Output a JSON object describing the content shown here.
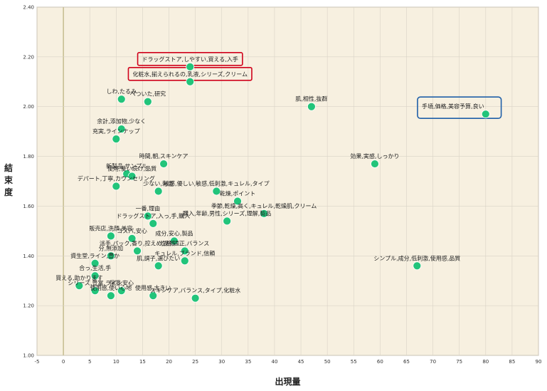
{
  "colors": {
    "plot_bg": "#f7f0e0",
    "grid": "#d9d3c6",
    "zero_line": "#b8b07a",
    "point": "#22c47a",
    "point_stroke": "#ffffff",
    "highlight_red": "#d0021b",
    "highlight_blue": "#1f5fa8"
  },
  "chart_data": {
    "type": "scatter",
    "xlabel": "出現量",
    "ylabel": "結束度",
    "xlim": [
      -5,
      90
    ],
    "ylim": [
      1.0,
      2.4
    ],
    "x_ticks": [
      "-5",
      "0",
      "5",
      "10",
      "15",
      "20",
      "25",
      "30",
      "35",
      "40",
      "45",
      "50",
      "55",
      "60",
      "65",
      "70",
      "75",
      "80",
      "85",
      "90"
    ],
    "y_ticks": [
      "1.00",
      "1.20",
      "1.40",
      "1.60",
      "1.80",
      "2.00",
      "2.20",
      "2.40"
    ],
    "grid": true,
    "points": [
      {
        "x": 24,
        "y": 2.16,
        "label": "ドラッグストア,しやすい,買える,入手",
        "highlight": "red"
      },
      {
        "x": 24,
        "y": 2.1,
        "label": "化粧水,揃えられるの,乳液,シリーズ,クリーム",
        "highlight": "red"
      },
      {
        "x": 80,
        "y": 1.97,
        "label": "手頃,価格,美容予算,良い",
        "highlight": "blue"
      },
      {
        "x": 11,
        "y": 2.03,
        "label": "しわ,たるみ"
      },
      {
        "x": 16,
        "y": 2.02,
        "label": "べついた,研究"
      },
      {
        "x": 47,
        "y": 2.0,
        "label": "肌,相性,抜群"
      },
      {
        "x": 11,
        "y": 1.91,
        "label": "余計,添加物,少なく"
      },
      {
        "x": 10,
        "y": 1.87,
        "label": "充実,ラインナップ"
      },
      {
        "x": 59,
        "y": 1.77,
        "label": "効果,実感,しっかり"
      },
      {
        "x": 19,
        "y": 1.77,
        "label": "時間,朝,スキンケア"
      },
      {
        "x": 12,
        "y": 1.73,
        "label": "新製品,サンプル"
      },
      {
        "x": 13,
        "y": 1.72,
        "label": "使用,使い続け,品質"
      },
      {
        "x": 10,
        "y": 1.68,
        "label": "デパート,丁寧,カウンセリング"
      },
      {
        "x": 18,
        "y": 1.66,
        "label": "少ない,刺激"
      },
      {
        "x": 29,
        "y": 1.66,
        "label": "敏感,優しい,敏感,低刺激,キュレル,タイプ"
      },
      {
        "x": 33,
        "y": 1.62,
        "label": "乾燥,ポイント"
      },
      {
        "x": 38,
        "y": 1.57,
        "label": "季節,乾燥,高く,キュレル,乾燥肌,クリーム"
      },
      {
        "x": 16,
        "y": 1.56,
        "label": "一番,理由"
      },
      {
        "x": 17,
        "y": 1.53,
        "label": "ドラッグストア,入っ,手,購入"
      },
      {
        "x": 31,
        "y": 1.54,
        "label": "購入,年齢,男性,シリーズ,理解,製品"
      },
      {
        "x": 9,
        "y": 1.48,
        "label": "販売店,洗顔,美容"
      },
      {
        "x": 13,
        "y": 1.47,
        "label": "コスパ,安心"
      },
      {
        "x": 21,
        "y": 1.46,
        "label": "成分,安心,製品"
      },
      {
        "x": 14,
        "y": 1.42,
        "label": "派手,パック,香り,控えめ,品質"
      },
      {
        "x": 23,
        "y": 1.42,
        "label": "性格,適正,バランス"
      },
      {
        "x": 9,
        "y": 1.4,
        "label": "分,無添加"
      },
      {
        "x": 6,
        "y": 1.37,
        "label": "資生堂,ライン,豊か"
      },
      {
        "x": 23,
        "y": 1.38,
        "label": "キュレル,ブランド,信頼"
      },
      {
        "x": 18,
        "y": 1.36,
        "label": "肌,調子,選びたい"
      },
      {
        "x": 67,
        "y": 1.36,
        "label": "シンプル,成分,低刺激,使用感,品質"
      },
      {
        "x": 6,
        "y": 1.32,
        "label": "合っ,生活,手"
      },
      {
        "x": 3,
        "y": 1.28,
        "label": "買える,助かります"
      },
      {
        "x": 6,
        "y": 1.26,
        "label": "シリーズ,豊富,ライン"
      },
      {
        "x": 9,
        "y": 1.24,
        "label": "使用感,使い心地"
      },
      {
        "x": 11,
        "y": 1.26,
        "label": "保湿,安心"
      },
      {
        "x": 17,
        "y": 1.24,
        "label": "使用感,大きい"
      },
      {
        "x": 25,
        "y": 1.23,
        "label": "スキンケア,バランス,タイプ,化粧水"
      }
    ]
  }
}
